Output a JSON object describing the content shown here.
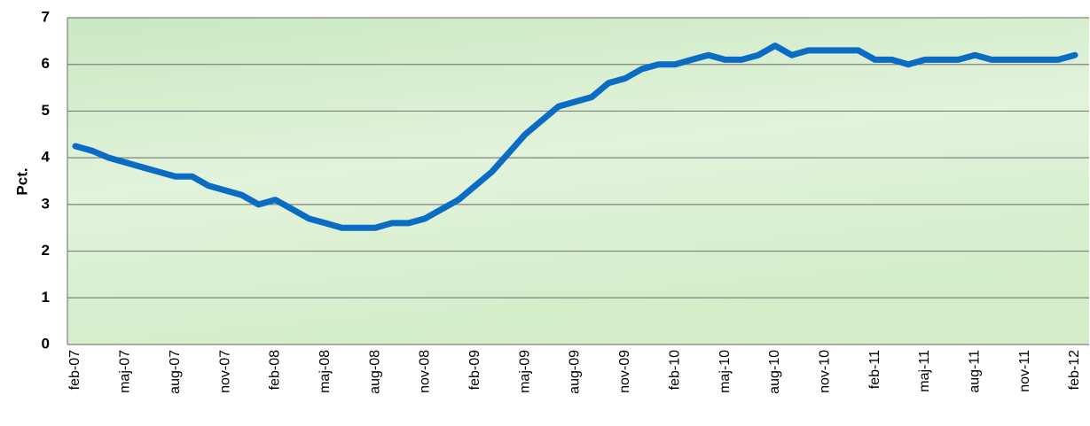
{
  "chart_data": {
    "type": "line",
    "y_label": "Pct.",
    "categories": [
      "feb-07",
      null,
      null,
      "maj-07",
      null,
      null,
      "aug-07",
      null,
      null,
      "nov-07",
      null,
      null,
      "feb-08",
      null,
      null,
      "maj-08",
      null,
      null,
      "aug-08",
      null,
      null,
      "nov-08",
      null,
      null,
      "feb-09",
      null,
      null,
      "maj-09",
      null,
      null,
      "aug-09",
      null,
      null,
      "nov-09",
      null,
      null,
      "feb-10",
      null,
      null,
      "maj-10",
      null,
      null,
      "aug-10",
      null,
      null,
      "nov-10",
      null,
      null,
      "feb-11",
      null,
      null,
      "maj-11",
      null,
      null,
      "aug-11",
      null,
      null,
      "nov-11",
      null,
      null,
      "feb-12"
    ],
    "values": [
      4.25,
      4.15,
      4.0,
      3.9,
      3.8,
      3.7,
      3.6,
      3.6,
      3.4,
      3.3,
      3.2,
      3.0,
      3.1,
      2.9,
      2.7,
      2.6,
      2.5,
      2.5,
      2.5,
      2.6,
      2.6,
      2.7,
      2.9,
      3.1,
      3.4,
      3.7,
      4.1,
      4.5,
      4.8,
      5.1,
      5.2,
      5.3,
      5.6,
      5.7,
      5.9,
      6.0,
      6.0,
      6.1,
      6.2,
      6.1,
      6.1,
      6.2,
      6.4,
      6.2,
      6.3,
      6.3,
      6.3,
      6.3,
      6.1,
      6.1,
      6.0,
      6.1,
      6.1,
      6.1,
      6.2,
      6.1,
      6.1,
      6.1,
      6.1,
      6.1,
      6.2
    ],
    "color": "#0b6cc4",
    "ylim": [
      0,
      7
    ],
    "yticks": [
      0,
      1,
      2,
      3,
      4,
      5,
      6,
      7
    ],
    "grid": true
  }
}
